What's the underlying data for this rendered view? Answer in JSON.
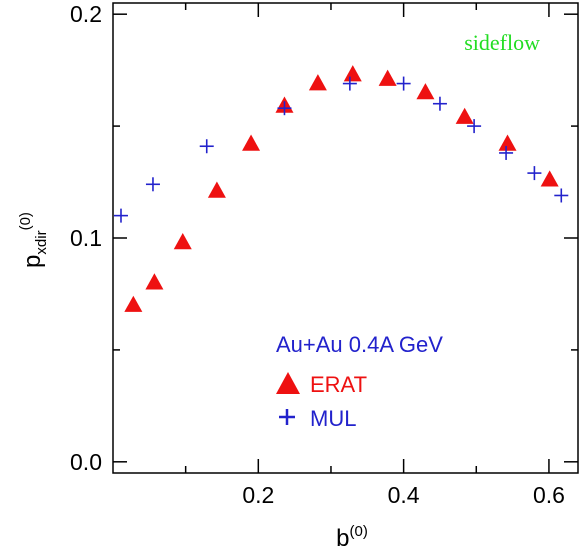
{
  "chart_data": {
    "type": "scatter",
    "title": "",
    "xlabel": {
      "base": "b",
      "sup": "(0)"
    },
    "ylabel": {
      "base": "p",
      "sub": "xdir",
      "sup": "(0)"
    },
    "xlim": [
      0.0,
      0.64
    ],
    "ylim": [
      -0.005,
      0.205
    ],
    "x_ticks": [
      {
        "value": 0.2,
        "label": "0.2"
      },
      {
        "value": 0.4,
        "label": "0.4"
      },
      {
        "value": 0.6,
        "label": "0.6"
      }
    ],
    "y_ticks": [
      {
        "value": 0.0,
        "label": "0.0"
      },
      {
        "value": 0.1,
        "label": "0.1"
      },
      {
        "value": 0.2,
        "label": "0.2"
      }
    ],
    "annotation": "sideflow",
    "legend_title": "Au+Au 0.4A GeV",
    "series": [
      {
        "name": "ERAT",
        "marker": "triangle",
        "color": "#ee1111",
        "x": [
          0.028,
          0.057,
          0.096,
          0.143,
          0.19,
          0.236,
          0.282,
          0.33,
          0.378,
          0.43,
          0.484,
          0.543,
          0.601
        ],
        "y": [
          0.07,
          0.08,
          0.098,
          0.121,
          0.142,
          0.159,
          0.169,
          0.173,
          0.171,
          0.165,
          0.154,
          0.142,
          0.126
        ]
      },
      {
        "name": "MUL",
        "marker": "plus",
        "color": "#2222cc",
        "x": [
          0.011,
          0.055,
          0.129,
          0.236,
          0.326,
          0.4,
          0.45,
          0.497,
          0.541,
          0.58,
          0.617
        ],
        "y": [
          0.11,
          0.124,
          0.141,
          0.158,
          0.169,
          0.169,
          0.16,
          0.15,
          0.138,
          0.129,
          0.119
        ]
      }
    ]
  }
}
